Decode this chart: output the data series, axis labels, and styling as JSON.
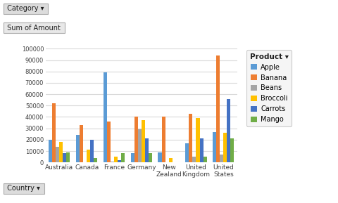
{
  "countries": [
    "Australia",
    "Canada",
    "France",
    "Germany",
    "New\nZealand",
    "United\nKingdom",
    "United\nStates"
  ],
  "products": [
    "Apple",
    "Banana",
    "Beans",
    "Broccoli",
    "Carrots",
    "Mango"
  ],
  "colors": [
    "#5B9BD5",
    "#ED7D31",
    "#A5A5A5",
    "#FFC000",
    "#4472C4",
    "#70AD47"
  ],
  "data": {
    "Apple": [
      20000,
      24000,
      79000,
      8000,
      9000,
      17000,
      27000
    ],
    "Banana": [
      52000,
      33000,
      36000,
      40000,
      40000,
      43000,
      94000
    ],
    "Beans": [
      14000,
      0,
      1000,
      29000,
      0,
      5000,
      7000
    ],
    "Broccoli": [
      18000,
      11000,
      5000,
      37000,
      4000,
      39000,
      26000
    ],
    "Carrots": [
      8000,
      20000,
      2000,
      21000,
      0,
      21000,
      56000
    ],
    "Mango": [
      9000,
      4000,
      8000,
      8000,
      0,
      5000,
      21000
    ]
  },
  "ylim": [
    0,
    100000
  ],
  "yticks": [
    0,
    10000,
    20000,
    30000,
    40000,
    50000,
    60000,
    70000,
    80000,
    90000,
    100000
  ],
  "ytick_labels": [
    "0",
    "10000",
    "20000",
    "30000",
    "40000",
    "50000",
    "60000",
    "70000",
    "80000",
    "90000",
    "100000"
  ],
  "bg_color": "#FFFFFF",
  "plot_bg_color": "#FFFFFF",
  "grid_color": "#D9D9D9",
  "product_label": "Product ▾",
  "category_label": "Category ▾",
  "country_label": "Country ▾",
  "sum_label": "Sum of Amount"
}
